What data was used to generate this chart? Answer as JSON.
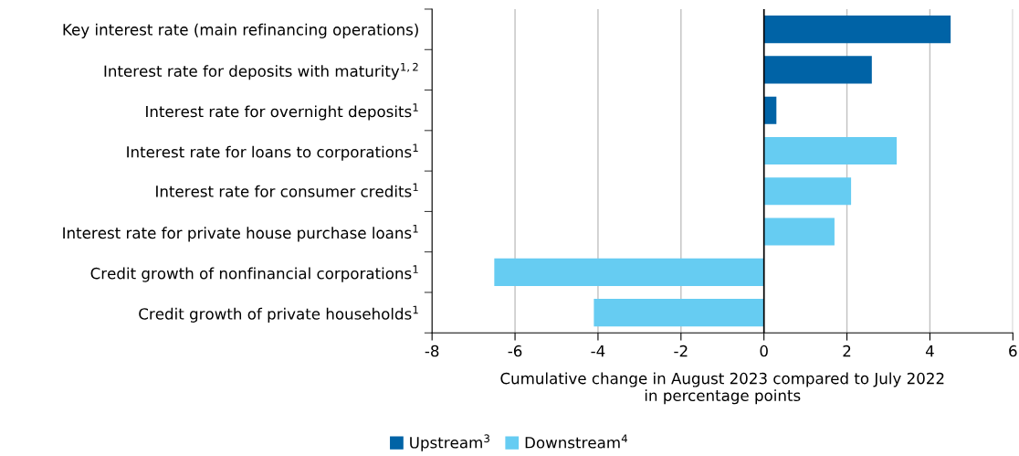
{
  "chart_data": {
    "type": "bar",
    "orientation": "horizontal",
    "categories": [
      "Key interest rate (main refinancing operations)",
      "Interest rate for deposits with maturity$^{1,2}$",
      "Interest rate for overnight deposits$^{1}$",
      "Interest rate for loans to corporations$^{1}$",
      "Interest rate for consumer credits$^{1}$",
      "Interest rate for private house purchase loans$^{1}$",
      "Credit growth of nonfinancial corporations$^{1}$",
      "Credit growth of private households$^{1}$"
    ],
    "series": [
      {
        "name": "Upstream$^{3}$",
        "color": "#0063a6",
        "values": [
          4.5,
          2.6,
          0.3,
          null,
          null,
          null,
          null,
          null
        ]
      },
      {
        "name": "Downstream$^{4}$",
        "color": "#66ccf2",
        "values": [
          null,
          null,
          null,
          3.2,
          2.1,
          1.7,
          -6.5,
          -4.1
        ]
      }
    ],
    "xlim": [
      -8,
      6
    ],
    "xticks": [
      -8,
      -6,
      -4,
      -2,
      0,
      2,
      4,
      6
    ],
    "xlabel": "Cumulative change in August 2023 compared to July 2022\nin percentage points",
    "ref_lines": [
      {
        "axis": "x",
        "value": 0,
        "color": "#000000"
      }
    ],
    "grid": "x",
    "legend": "bottom"
  }
}
